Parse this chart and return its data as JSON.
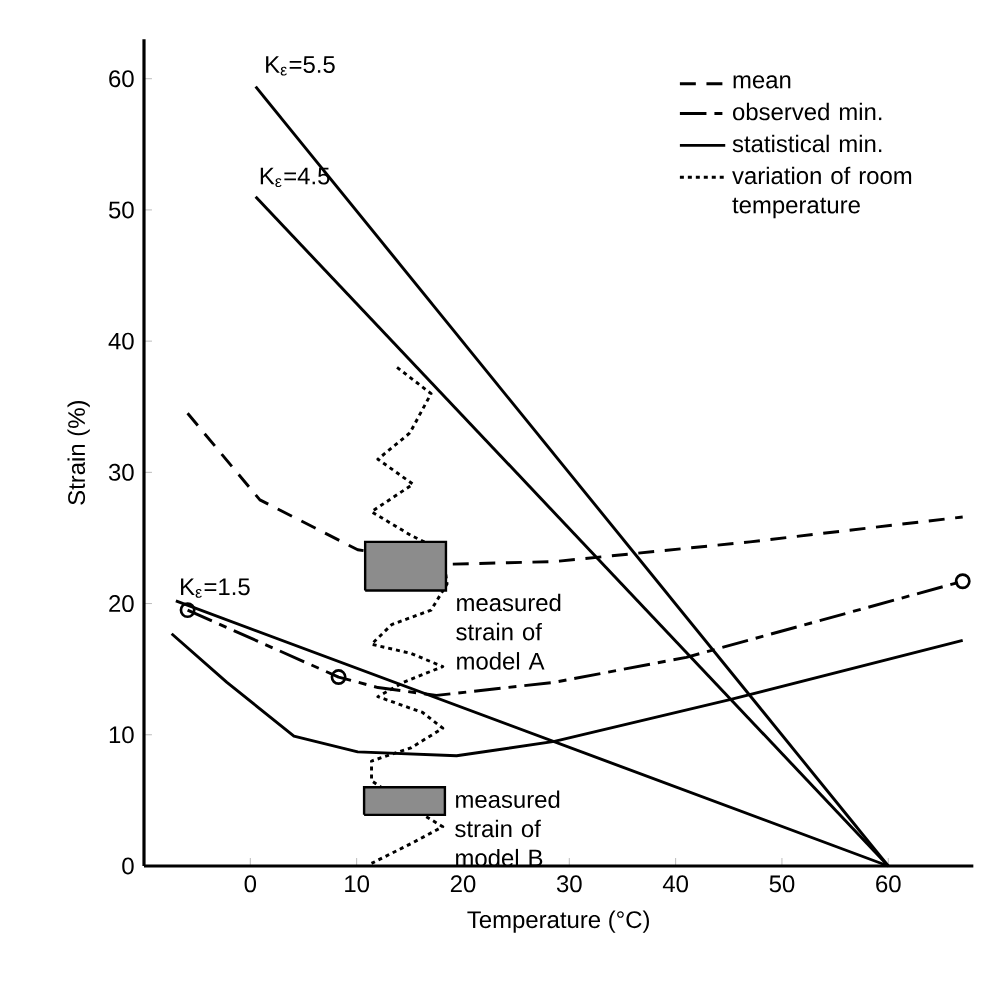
{
  "chart_data": {
    "type": "line",
    "xlabel": "Temperature (°C)",
    "ylabel": "Strain (%)",
    "xlim": [
      -10,
      68
    ],
    "ylim": [
      0,
      63
    ],
    "xticks": [
      0,
      10,
      20,
      30,
      40,
      50,
      60
    ],
    "yticks": [
      0,
      10,
      20,
      30,
      40,
      50,
      60
    ],
    "legend": "top right",
    "series": [
      {
        "name": "mean",
        "color": "#000000",
        "line_style": "dashed",
        "x": [
          -5.9,
          0.9,
          10.1,
          18.8,
          28.6,
          47,
          67
        ],
        "values": [
          34.5,
          27.9,
          24.1,
          23,
          23.2,
          24.7,
          26.6
        ]
      },
      {
        "name": "observed min.",
        "color": "#000000",
        "line_style": "dashdot",
        "x": [
          -5.9,
          8.3,
          12,
          17.5,
          28.6,
          41,
          67
        ],
        "values": [
          19.5,
          14.4,
          13.6,
          13,
          14,
          15.9,
          21.7
        ]
      },
      {
        "name": "statistical min.",
        "color": "#000000",
        "line_style": "solid",
        "x": [
          -7.4,
          -2.2,
          4.1,
          10.1,
          19.4,
          28.6,
          45.2,
          67
        ],
        "values": [
          17.7,
          14,
          9.9,
          8.7,
          8.4,
          9.5,
          12.7,
          17.2
        ]
      },
      {
        "name": "variation of room temperature",
        "color": "#000000",
        "line_style": "dotted",
        "x": [
          13.8,
          17,
          15,
          12,
          15.3,
          11.4,
          15.1,
          18.1,
          18.5,
          17,
          13.3,
          11.4,
          15.1,
          18.1,
          14.4,
          12,
          16.2,
          18.1,
          15.1,
          11.4,
          11.4,
          15,
          18.1,
          15.1,
          11.4
        ],
        "values": [
          38,
          36,
          33,
          31,
          29.1,
          27,
          25.2,
          24,
          21.5,
          19.5,
          18.4,
          16.9,
          16.2,
          15.2,
          14,
          12.9,
          11.7,
          10.5,
          9,
          8,
          6.5,
          4.5,
          3,
          1.7,
          0.2
        ]
      },
      {
        "color": "#000000",
        "line_style": "solid",
        "x": [
          0.5,
          60
        ],
        "values": [
          59.4,
          0
        ]
      },
      {
        "color": "#000000",
        "line_style": "solid",
        "x": [
          0.5,
          60
        ],
        "values": [
          51,
          0
        ]
      },
      {
        "color": "#000000",
        "line_style": "solid",
        "x": [
          -7,
          60
        ],
        "values": [
          20.2,
          0
        ]
      },
      {
        "type": "scatter",
        "marker": "circle",
        "color": "#000000",
        "x": [
          -5.9,
          8.3,
          67
        ],
        "values": [
          19.5,
          14.4,
          21.7
        ]
      },
      {
        "type": "bar",
        "name": "measured strain of model A",
        "color": "#000000",
        "x": [
          14.6
        ],
        "base": [
          21
        ],
        "values": [
          3.7
        ]
      },
      {
        "type": "bar",
        "name": "measured strain of model B",
        "color": "#000000",
        "x": [
          14.5
        ],
        "base": [
          3.9
        ],
        "values": [
          2.1
        ]
      }
    ],
    "annotations": [
      {
        "text": "K$_{ε}$=5.5",
        "x": 1,
        "y": 60
      },
      {
        "text": "K$_{ε}$=4.5",
        "x": 0.5,
        "y": 51.5
      },
      {
        "text": "K$_{ε}$=1.5",
        "x": -7,
        "y": 20.2
      }
    ]
  }
}
